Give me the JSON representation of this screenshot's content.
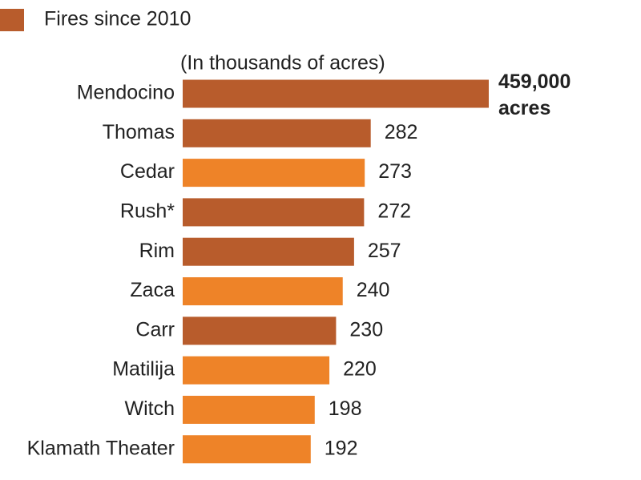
{
  "chart_data": {
    "type": "bar",
    "legend": {
      "name": "Fires since 2010",
      "color": "#b85c2c"
    },
    "subtitle": "(In thousands of acres)",
    "categories": [
      "Mendocino",
      "Thomas",
      "Cedar",
      "Rush*",
      "Rim",
      "Zaca",
      "Carr",
      "Matilija",
      "Witch",
      "Klamath Theater"
    ],
    "values": [
      459,
      282,
      273,
      272,
      257,
      240,
      230,
      220,
      198,
      192
    ],
    "value_labels": [
      "459,000 acres",
      "282",
      "273",
      "272",
      "257",
      "240",
      "230",
      "220",
      "198",
      "192"
    ],
    "colors": [
      "#b85c2c",
      "#b85c2c",
      "#ee8328",
      "#b85c2c",
      "#b85c2c",
      "#ee8328",
      "#b85c2c",
      "#ee8328",
      "#ee8328",
      "#ee8328"
    ]
  }
}
